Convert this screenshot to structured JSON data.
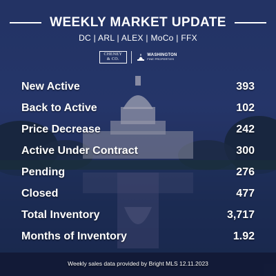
{
  "header": {
    "title": "WEEKLY MARKET UPDATE",
    "regions": "DC | ARL | ALEX | MoCo | FFX"
  },
  "logos": {
    "cheney_line1": "CHENEY",
    "cheney_line2": "& CO.",
    "washington_line1": "WASHINGTON",
    "washington_line2": "FINE PROPERTIES"
  },
  "stats": [
    {
      "label": "New Active",
      "value": "393"
    },
    {
      "label": "Back to Active",
      "value": "102"
    },
    {
      "label": "Price Decrease",
      "value": "242"
    },
    {
      "label": "Active Under Contract",
      "value": "300"
    },
    {
      "label": "Pending",
      "value": "276"
    },
    {
      "label": "Closed",
      "value": "477"
    },
    {
      "label": "Total Inventory",
      "value": "3,717"
    },
    {
      "label": "Months of Inventory",
      "value": "1.92"
    }
  ],
  "footer": {
    "note": "Weekly sales data provided by Bright MLS 12.11.2023"
  }
}
